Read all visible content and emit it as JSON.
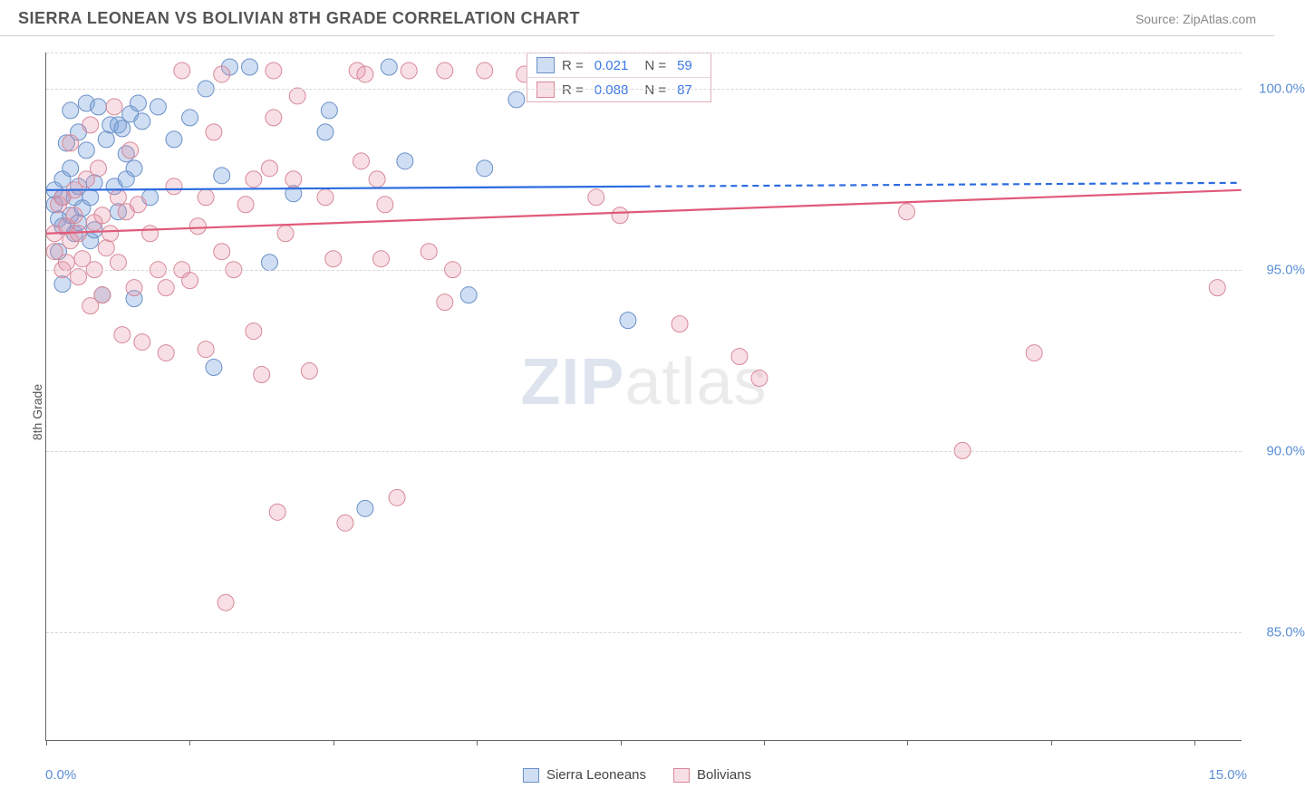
{
  "header": {
    "title": "SIERRA LEONEAN VS BOLIVIAN 8TH GRADE CORRELATION CHART",
    "source_prefix": "Source: ",
    "source": "ZipAtlas.com"
  },
  "chart": {
    "type": "scatter",
    "y_axis_label": "8th Grade",
    "watermark_zip": "ZIP",
    "watermark_atlas": "atlas",
    "xlim": [
      0.0,
      15.0
    ],
    "ylim": [
      82.0,
      101.0
    ],
    "x_tick_positions": [
      0.0,
      1.8,
      3.6,
      5.4,
      7.2,
      9.0,
      10.8,
      12.6,
      14.4
    ],
    "x_left_label": "0.0%",
    "x_right_label": "15.0%",
    "y_ticks": [
      {
        "value": 100.0,
        "label": "100.0%"
      },
      {
        "value": 95.0,
        "label": "95.0%"
      },
      {
        "value": 90.0,
        "label": "90.0%"
      },
      {
        "value": 85.0,
        "label": "85.0%"
      }
    ],
    "grid_extra_top": 101.0,
    "background_color": "#ffffff",
    "grid_color": "#d8d8d8",
    "marker_radius": 9,
    "marker_stroke_width": 1,
    "series": [
      {
        "name": "Sierra Leoneans",
        "fill_color": "rgba(120,160,220,0.35)",
        "stroke_color": "#6890c8",
        "line_color": "#2b6be0",
        "line_width": 2.2,
        "r_value": "0.021",
        "n_value": "59",
        "trend": {
          "x1": 0.0,
          "y1": 97.2,
          "x2": 15.0,
          "y2": 97.4,
          "solid_until_x": 7.5
        },
        "points": [
          [
            0.1,
            96.8
          ],
          [
            0.1,
            97.2
          ],
          [
            0.15,
            96.4
          ],
          [
            0.15,
            95.5
          ],
          [
            0.2,
            97.0
          ],
          [
            0.2,
            96.2
          ],
          [
            0.2,
            97.5
          ],
          [
            0.2,
            94.6
          ],
          [
            0.25,
            98.5
          ],
          [
            0.3,
            96.5
          ],
          [
            0.3,
            97.8
          ],
          [
            0.3,
            99.4
          ],
          [
            0.35,
            96.0
          ],
          [
            0.35,
            97.0
          ],
          [
            0.4,
            98.8
          ],
          [
            0.4,
            96.3
          ],
          [
            0.4,
            97.3
          ],
          [
            0.45,
            96.7
          ],
          [
            0.5,
            99.6
          ],
          [
            0.5,
            98.3
          ],
          [
            0.55,
            97.0
          ],
          [
            0.55,
            95.8
          ],
          [
            0.6,
            96.1
          ],
          [
            0.6,
            97.4
          ],
          [
            0.65,
            99.5
          ],
          [
            0.7,
            94.3
          ],
          [
            0.75,
            98.6
          ],
          [
            0.8,
            99.0
          ],
          [
            0.85,
            97.3
          ],
          [
            0.9,
            96.6
          ],
          [
            0.9,
            99.0
          ],
          [
            0.95,
            98.9
          ],
          [
            1.0,
            98.2
          ],
          [
            1.0,
            97.5
          ],
          [
            1.05,
            99.3
          ],
          [
            1.1,
            94.2
          ],
          [
            1.1,
            97.8
          ],
          [
            1.15,
            99.6
          ],
          [
            1.2,
            99.1
          ],
          [
            1.3,
            97.0
          ],
          [
            1.4,
            99.5
          ],
          [
            1.6,
            98.6
          ],
          [
            1.8,
            99.2
          ],
          [
            2.0,
            100.0
          ],
          [
            2.1,
            92.3
          ],
          [
            2.2,
            97.6
          ],
          [
            2.3,
            100.6
          ],
          [
            2.55,
            100.6
          ],
          [
            2.8,
            95.2
          ],
          [
            3.1,
            97.1
          ],
          [
            3.5,
            98.8
          ],
          [
            3.55,
            99.4
          ],
          [
            4.0,
            88.4
          ],
          [
            4.3,
            100.6
          ],
          [
            4.5,
            98.0
          ],
          [
            5.3,
            94.3
          ],
          [
            5.5,
            97.8
          ],
          [
            5.9,
            99.7
          ],
          [
            7.3,
            93.6
          ]
        ]
      },
      {
        "name": "Bolivians",
        "fill_color": "rgba(230,150,170,0.30)",
        "stroke_color": "#d88898",
        "line_color": "#e05a7a",
        "line_width": 2.2,
        "r_value": "0.088",
        "n_value": "87",
        "trend": {
          "x1": 0.0,
          "y1": 96.0,
          "x2": 15.0,
          "y2": 97.2,
          "solid_until_x": 15.0
        },
        "points": [
          [
            0.1,
            96.0
          ],
          [
            0.1,
            95.5
          ],
          [
            0.15,
            96.8
          ],
          [
            0.2,
            95.0
          ],
          [
            0.2,
            97.0
          ],
          [
            0.25,
            95.2
          ],
          [
            0.25,
            96.2
          ],
          [
            0.3,
            98.5
          ],
          [
            0.3,
            95.8
          ],
          [
            0.35,
            96.5
          ],
          [
            0.35,
            97.2
          ],
          [
            0.4,
            94.8
          ],
          [
            0.4,
            96.0
          ],
          [
            0.45,
            95.3
          ],
          [
            0.5,
            97.5
          ],
          [
            0.55,
            99.0
          ],
          [
            0.55,
            94.0
          ],
          [
            0.6,
            96.3
          ],
          [
            0.6,
            95.0
          ],
          [
            0.65,
            97.8
          ],
          [
            0.7,
            96.5
          ],
          [
            0.7,
            94.3
          ],
          [
            0.75,
            95.6
          ],
          [
            0.8,
            96.0
          ],
          [
            0.85,
            99.5
          ],
          [
            0.9,
            97.0
          ],
          [
            0.9,
            95.2
          ],
          [
            0.95,
            93.2
          ],
          [
            1.0,
            96.6
          ],
          [
            1.05,
            98.3
          ],
          [
            1.1,
            94.5
          ],
          [
            1.15,
            96.8
          ],
          [
            1.2,
            93.0
          ],
          [
            1.3,
            96.0
          ],
          [
            1.4,
            95.0
          ],
          [
            1.5,
            94.5
          ],
          [
            1.5,
            92.7
          ],
          [
            1.6,
            97.3
          ],
          [
            1.7,
            95.0
          ],
          [
            1.7,
            100.5
          ],
          [
            1.8,
            94.7
          ],
          [
            1.9,
            96.2
          ],
          [
            2.0,
            97.0
          ],
          [
            2.0,
            92.8
          ],
          [
            2.1,
            98.8
          ],
          [
            2.2,
            95.5
          ],
          [
            2.2,
            100.4
          ],
          [
            2.25,
            85.8
          ],
          [
            2.35,
            95.0
          ],
          [
            2.5,
            96.8
          ],
          [
            2.6,
            93.3
          ],
          [
            2.6,
            97.5
          ],
          [
            2.7,
            92.1
          ],
          [
            2.8,
            97.8
          ],
          [
            2.85,
            99.2
          ],
          [
            2.85,
            100.5
          ],
          [
            2.9,
            88.3
          ],
          [
            3.0,
            96.0
          ],
          [
            3.1,
            97.5
          ],
          [
            3.15,
            99.8
          ],
          [
            3.3,
            92.2
          ],
          [
            3.5,
            97.0
          ],
          [
            3.6,
            95.3
          ],
          [
            3.75,
            88.0
          ],
          [
            3.9,
            100.5
          ],
          [
            3.95,
            98.0
          ],
          [
            4.0,
            100.4
          ],
          [
            4.15,
            97.5
          ],
          [
            4.2,
            95.3
          ],
          [
            4.25,
            96.8
          ],
          [
            4.4,
            88.7
          ],
          [
            4.55,
            100.5
          ],
          [
            4.8,
            95.5
          ],
          [
            5.0,
            94.1
          ],
          [
            5.0,
            100.5
          ],
          [
            5.1,
            95.0
          ],
          [
            5.5,
            100.5
          ],
          [
            6.0,
            100.4
          ],
          [
            6.9,
            97.0
          ],
          [
            7.2,
            96.5
          ],
          [
            7.95,
            93.5
          ],
          [
            8.7,
            92.6
          ],
          [
            8.95,
            92.0
          ],
          [
            10.8,
            96.6
          ],
          [
            11.5,
            90.0
          ],
          [
            12.4,
            92.7
          ],
          [
            14.7,
            94.5
          ]
        ]
      }
    ],
    "legend_r_label": "R =",
    "legend_n_label": "N ="
  },
  "legend_bottom": {
    "series1": "Sierra Leoneans",
    "series2": "Bolivians"
  }
}
